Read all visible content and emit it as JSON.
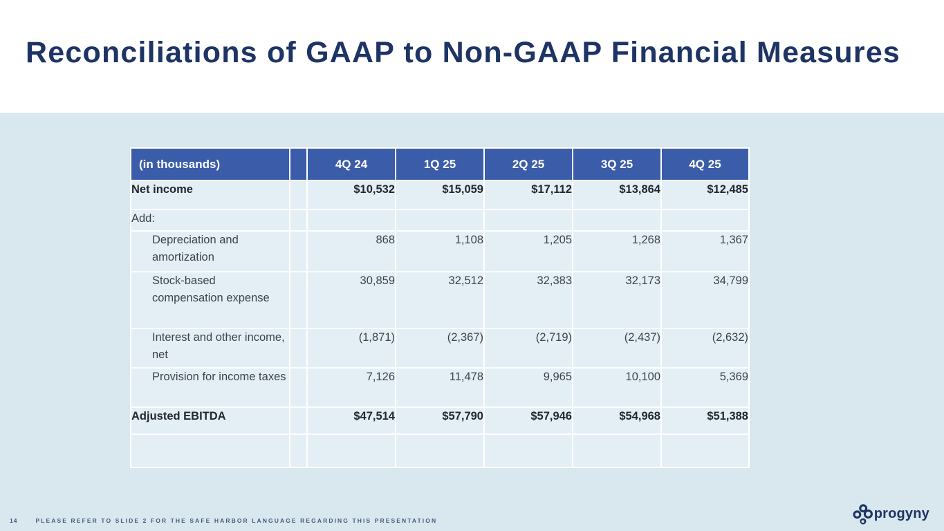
{
  "slide": {
    "title": "Reconciliations of GAAP to Non-GAAP Financial Measures",
    "page_number": "14",
    "footer_note": "PLEASE REFER TO SLIDE 2 FOR THE SAFE HARBOR LANGUAGE REGARDING THIS PRESENTATION",
    "logo_text": "progyny"
  },
  "table": {
    "unit_label": "(in thousands)",
    "columns": [
      "4Q 24",
      "1Q 25",
      "2Q 25",
      "3Q 25",
      "4Q 25"
    ],
    "rows": [
      {
        "label": "Net income",
        "values": [
          "$10,532",
          "$15,059",
          "$17,112",
          "$13,864",
          "$12,485"
        ],
        "bold": true,
        "indent": false,
        "topline": false
      },
      {
        "label": "Add:",
        "values": [
          "",
          "",
          "",
          "",
          ""
        ],
        "bold": false,
        "indent": false,
        "topline": false
      },
      {
        "label": "Depreciation and amortization",
        "values": [
          "868",
          "1,108",
          "1,205",
          "1,268",
          "1,367"
        ],
        "bold": false,
        "indent": true,
        "topline": false
      },
      {
        "label": "Stock-based compensation expense",
        "values": [
          "30,859",
          "32,512",
          "32,383",
          "32,173",
          "34,799"
        ],
        "bold": false,
        "indent": true,
        "topline": false
      },
      {
        "label": "Interest and other income, net",
        "values": [
          "(1,871)",
          "(2,367)",
          "(2,719)",
          "(2,437)",
          "(2,632)"
        ],
        "bold": false,
        "indent": true,
        "topline": false
      },
      {
        "label": "Provision for income taxes",
        "values": [
          "7,126",
          "11,478",
          "9,965",
          "10,100",
          "5,369"
        ],
        "bold": false,
        "indent": true,
        "topline": false
      },
      {
        "label": "Adjusted EBITDA",
        "values": [
          "$47,514",
          "$57,790",
          "$57,946",
          "$54,968",
          "$51,388"
        ],
        "bold": true,
        "indent": false,
        "topline": true
      },
      {
        "label": "",
        "values": [
          "",
          "",
          "",
          "",
          ""
        ],
        "bold": false,
        "indent": false,
        "topline": false
      }
    ]
  },
  "colors": {
    "title-text": "#1E3464",
    "band-bg": "#FFFFFF",
    "page-bg": "#D9E7EF",
    "header-bg": "#3B5CA9",
    "header-text": "#FFFFFF",
    "cell-bg": "#E4EEF5",
    "grid-line": "#FFFFFF",
    "body-text": "#3C434B",
    "bold-text": "#23282E",
    "sum-rule": "#33383E",
    "footer-text": "#41597A",
    "logo-color": "#1E3464"
  }
}
